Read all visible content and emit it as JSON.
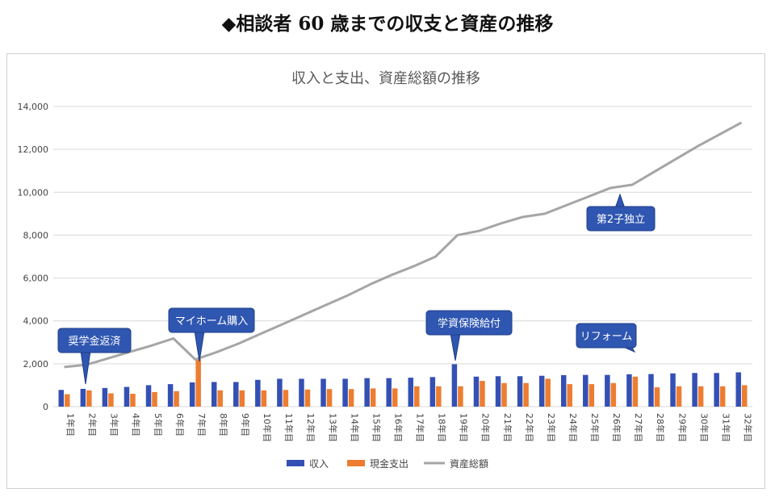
{
  "headline": "◆相談者 60 歳までの収支と資産の推移",
  "chart_data": {
    "type": "bar+line",
    "title": "収入と支出、資産総額の推移",
    "categories": [
      "1年目",
      "2年目",
      "3年目",
      "4年目",
      "5年目",
      "6年目",
      "7年目",
      "8年目",
      "9年目",
      "10年目",
      "11年目",
      "12年目",
      "13年目",
      "14年目",
      "15年目",
      "16年目",
      "17年目",
      "18年目",
      "19年目",
      "20年目",
      "21年目",
      "22年目",
      "23年目",
      "24年目",
      "25年目",
      "26年目",
      "27年目",
      "28年目",
      "29年目",
      "30年目",
      "31年目",
      "32年目"
    ],
    "ylim": [
      0,
      14000
    ],
    "yticks": [
      0,
      2000,
      4000,
      6000,
      8000,
      10000,
      12000,
      14000
    ],
    "ytick_labels": [
      "0",
      "2,000",
      "4,000",
      "6,000",
      "8,000",
      "10,000",
      "12,000",
      "14,000"
    ],
    "grid": true,
    "legend_position": "bottom",
    "series": [
      {
        "name": "収入",
        "type": "bar",
        "color": "#3450b4",
        "values": [
          780,
          830,
          870,
          920,
          1000,
          1050,
          1130,
          1150,
          1150,
          1250,
          1300,
          1300,
          1300,
          1300,
          1330,
          1330,
          1350,
          1380,
          1980,
          1400,
          1420,
          1420,
          1440,
          1470,
          1480,
          1480,
          1510,
          1520,
          1550,
          1570,
          1570,
          1600
        ]
      },
      {
        "name": "現金支出",
        "type": "bar",
        "color": "#ed7d31",
        "values": [
          580,
          760,
          620,
          600,
          680,
          720,
          2250,
          760,
          760,
          760,
          780,
          800,
          820,
          820,
          850,
          850,
          950,
          950,
          950,
          1200,
          1100,
          1100,
          1300,
          1050,
          1050,
          1100,
          1400,
          900,
          950,
          950,
          950,
          1000
        ]
      },
      {
        "name": "資産総額",
        "type": "line",
        "color": "#a5a5a5",
        "values": [
          1850,
          1950,
          2250,
          2550,
          2850,
          3180,
          2200,
          2550,
          2950,
          3400,
          3850,
          4300,
          4750,
          5200,
          5700,
          6150,
          6550,
          7000,
          8000,
          8200,
          8550,
          8850,
          9000,
          9400,
          9800,
          10200,
          10350,
          10950,
          11550,
          12150,
          12700,
          13250
        ]
      }
    ],
    "annotations": [
      {
        "text": "奨学金返済",
        "index": 1
      },
      {
        "text": "マイホーム購入",
        "index": 6
      },
      {
        "text": "学資保険給付",
        "index": 18
      },
      {
        "text": "リフォーム",
        "index": 26
      },
      {
        "text": "第2子独立",
        "index": 25
      }
    ]
  }
}
